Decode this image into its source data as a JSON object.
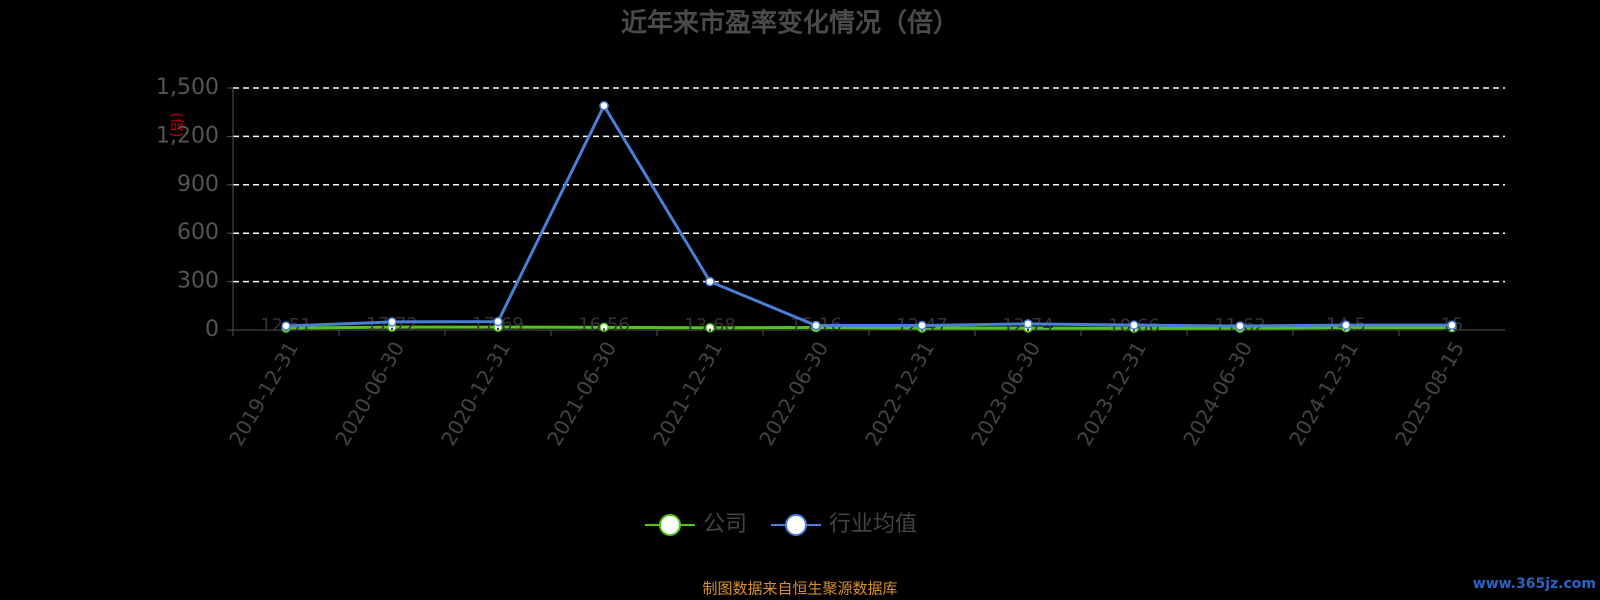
{
  "chart_data": {
    "type": "line",
    "title": "近年来市盈率变化情况（倍）",
    "y_label": "(倍)",
    "source": "制图数据来自恒生聚源数据库",
    "watermark": "www.365jz.com",
    "categories": [
      "2019-12-31",
      "2020-06-30",
      "2020-12-31",
      "2021-06-30",
      "2021-12-31",
      "2022-06-30",
      "2022-12-31",
      "2023-06-30",
      "2023-12-31",
      "2024-06-30",
      "2024-12-31",
      "2025-08-15"
    ],
    "series": [
      {
        "name": "公司",
        "color": "#52c41a",
        "values": [
          12.51,
          17.72,
          17.69,
          16.56,
          13.68,
          15.16,
          12.47,
          12.74,
          10.66,
          11.62,
          14.5,
          15.0
        ]
      },
      {
        "name": "行业均值",
        "color": "#4a7fd8",
        "values": [
          25,
          50,
          52,
          1390,
          300,
          28,
          28,
          38,
          30,
          25,
          30,
          30
        ]
      }
    ],
    "ylim": [
      0,
      1500
    ],
    "yticks": [
      0,
      300,
      600,
      900,
      {
        "value": 1200,
        "label": "1,200"
      },
      {
        "value": 1500,
        "label": "1,500"
      }
    ],
    "grid": true
  }
}
